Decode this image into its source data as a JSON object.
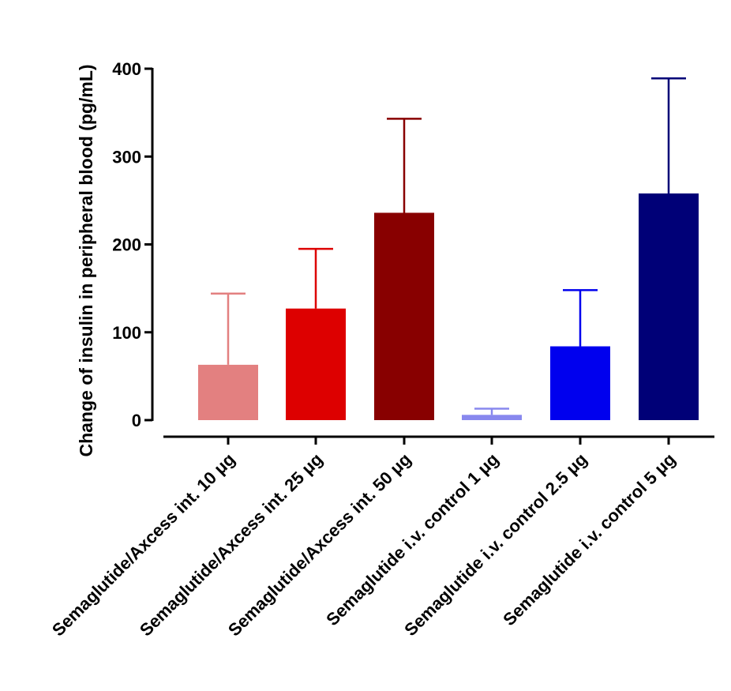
{
  "chart_data": {
    "type": "bar",
    "title": "",
    "xlabel": "",
    "ylabel": "Change of insulin in peripheral blood (pg/mL)",
    "ylim": [
      0,
      400
    ],
    "yticks": [
      "0",
      "100",
      "200",
      "300",
      "400"
    ],
    "ytick_values": [
      0,
      100,
      200,
      300,
      400
    ],
    "categories": [
      "Semaglutide/Axcess int. 10 μg",
      "Semaglutide/Axcess int. 25 μg",
      "Semaglutide/Axcess int. 50 μg",
      "Semaglutide i.v. control 1 μg",
      "Semaglutide i.v. control 2.5 μg",
      "Semaglutide i.v. control 5 μg"
    ],
    "values": [
      63,
      127,
      236,
      6,
      84,
      258
    ],
    "error_upper": [
      144,
      195,
      343,
      13,
      148,
      389
    ],
    "colors": [
      "#e38080",
      "#dd0000",
      "#880000",
      "#8888ee",
      "#0000ee",
      "#000077"
    ],
    "error_colors": [
      "#e38080",
      "#dd0000",
      "#880000",
      "#8888ee",
      "#0000ee",
      "#000077"
    ],
    "grid": false,
    "legend": "none"
  }
}
